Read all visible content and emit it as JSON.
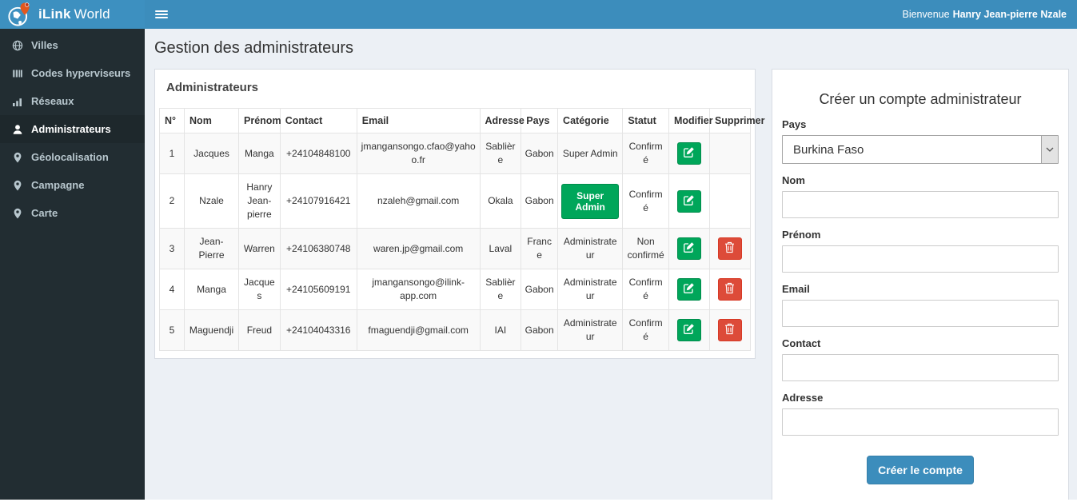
{
  "colors": {
    "navbar_blue": "#3c8dbc",
    "logo_blue": "#3d90c0",
    "sidebar_dark": "#222d32",
    "sidebar_active": "#1e282c",
    "content_bg": "#ecf0f5",
    "success_green": "#00a65a",
    "danger_red": "#dd4b39",
    "submit_blue": "#3c8dbc",
    "stripe": "#f9f9f9"
  },
  "brand": {
    "name_bold": "iLink",
    "name_rest": "World",
    "logo_icon": "globe-pin-logo-icon"
  },
  "topbar": {
    "menu_icon": "hamburger-icon",
    "welcome_prefix": "Bienvenue",
    "welcome_name": "Hanry Jean-pierre Nzale"
  },
  "sidebar": {
    "items": [
      {
        "label": "Villes",
        "icon": "globe",
        "active": false
      },
      {
        "label": "Codes hyperviseurs",
        "icon": "barcode",
        "active": false
      },
      {
        "label": "Réseaux",
        "icon": "bar-chart",
        "active": false
      },
      {
        "label": "Administrateurs",
        "icon": "user",
        "active": true
      },
      {
        "label": "Géolocalisation",
        "icon": "map-marker",
        "active": false
      },
      {
        "label": "Campagne",
        "icon": "map-marker",
        "active": false
      },
      {
        "label": "Carte",
        "icon": "map-marker",
        "active": false
      }
    ]
  },
  "page": {
    "title": "Gestion des administrateurs"
  },
  "admin_panel": {
    "title": "Administrateurs",
    "table": {
      "headers": [
        "N°",
        "Nom",
        "Prénom",
        "Contact",
        "Email",
        "Adresse",
        "Pays",
        "Catégorie",
        "Statut",
        "Modifier",
        "Supprimer"
      ],
      "rows": [
        {
          "num": "1",
          "nom": "Jacques",
          "prenom": "Manga",
          "contact": "+24104848100",
          "email": "jmangansongo.cfao@yahoo.fr",
          "adresse": "Sablière",
          "pays": "Gabon",
          "categorie": "Super Admin",
          "categorie_style": "text",
          "statut": "Confirmé",
          "deletable": false
        },
        {
          "num": "2",
          "nom": "Nzale",
          "prenom": "Hanry Jean-pierre",
          "contact": "+24107916421",
          "email": "nzaleh@gmail.com",
          "adresse": "Okala",
          "pays": "Gabon",
          "categorie": "Super Admin",
          "categorie_style": "button",
          "statut": "Confirmé",
          "deletable": false
        },
        {
          "num": "3",
          "nom": "Jean-Pierre",
          "prenom": "Warren",
          "contact": "+24106380748",
          "email": "waren.jp@gmail.com",
          "adresse": "Laval",
          "pays": "France",
          "categorie": "Administrateur",
          "categorie_style": "text",
          "statut": "Non confirmé",
          "deletable": true
        },
        {
          "num": "4",
          "nom": "Manga",
          "prenom": "Jacques",
          "contact": "+24105609191",
          "email": "jmangansongo@ilink-app.com",
          "adresse": "Sablière",
          "pays": "Gabon",
          "categorie": "Administrateur",
          "categorie_style": "text",
          "statut": "Confirmé",
          "deletable": true
        },
        {
          "num": "5",
          "nom": "Maguendji",
          "prenom": "Freud",
          "contact": "+24104043316",
          "email": "fmaguendji@gmail.com",
          "adresse": "IAI",
          "pays": "Gabon",
          "categorie": "Administrateur",
          "categorie_style": "text",
          "statut": "Confirmé",
          "deletable": true
        }
      ]
    },
    "action_icons": {
      "modifier": "edit-icon",
      "supprimer": "trash-icon"
    }
  },
  "form_panel": {
    "title": "Créer un compte administrateur",
    "fields": [
      {
        "label": "Pays",
        "type": "select",
        "value": "Burkina Faso",
        "icon": "chevron-down-icon"
      },
      {
        "label": "Nom",
        "type": "text",
        "value": "",
        "placeholder": ""
      },
      {
        "label": "Prénom",
        "type": "text",
        "value": "",
        "placeholder": ""
      },
      {
        "label": "Email",
        "type": "text",
        "value": "",
        "placeholder": ""
      },
      {
        "label": "Contact",
        "type": "text",
        "value": "",
        "placeholder": ""
      },
      {
        "label": "Adresse",
        "type": "text",
        "value": "",
        "placeholder": ""
      }
    ],
    "submit_label": "Créer le compte"
  }
}
